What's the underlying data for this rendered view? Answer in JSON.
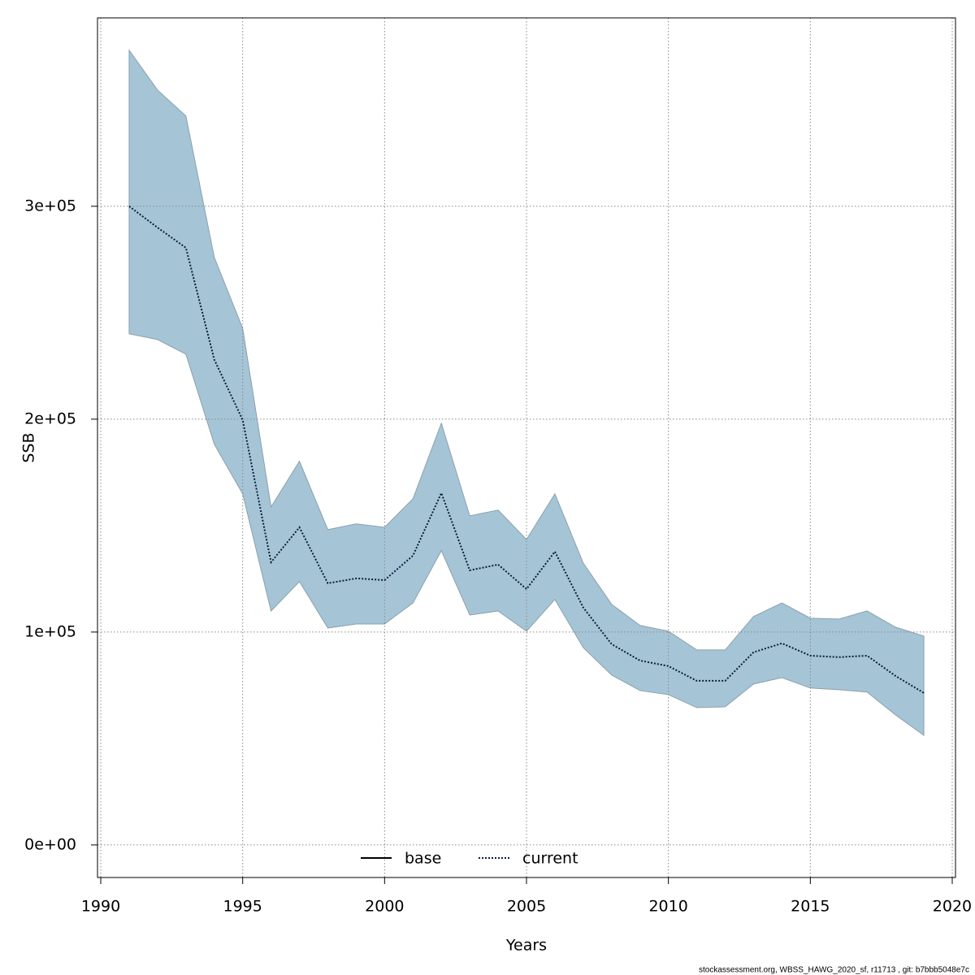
{
  "chart_data": {
    "type": "line",
    "xlabel": "Years",
    "ylabel": "SSB",
    "footnote": "stockassessment.org, WBSS_HAWG_2020_sf, r11713 , git: b7bbb5048e7c",
    "x": [
      1991,
      1992,
      1993,
      1994,
      1995,
      1996,
      1997,
      1998,
      1999,
      2000,
      2001,
      2002,
      2003,
      2004,
      2005,
      2006,
      2007,
      2008,
      2009,
      2010,
      2011,
      2012,
      2013,
      2014,
      2015,
      2016,
      2017,
      2018,
      2019
    ],
    "series": [
      {
        "name": "base",
        "color": "#000000",
        "dashed": false,
        "values": [
          null,
          null,
          null,
          null,
          null,
          null,
          null,
          null,
          null,
          null,
          null,
          null,
          null,
          null,
          null,
          null,
          null,
          null,
          null,
          null,
          null,
          null,
          null,
          null,
          null,
          null,
          null,
          null,
          null
        ]
      },
      {
        "name": "current",
        "color": "#0a1e3c",
        "dashed": true,
        "values": [
          300000,
          290000,
          280500,
          228000,
          199600,
          132800,
          149200,
          122900,
          125200,
          124400,
          135900,
          165300,
          129000,
          131700,
          120200,
          137800,
          111500,
          94300,
          86600,
          84000,
          77100,
          77100,
          90500,
          94700,
          88900,
          88200,
          88900,
          79400,
          71400
        ]
      }
    ],
    "band": {
      "color": "#a5c5d6",
      "edge": "#8aa0ad",
      "upper": [
        373300,
        354600,
        342400,
        276000,
        242700,
        158800,
        180200,
        148100,
        150800,
        149200,
        162600,
        198100,
        154600,
        157300,
        143500,
        164900,
        132400,
        113000,
        103100,
        100400,
        91600,
        91600,
        107300,
        113700,
        106500,
        106100,
        109900,
        102300,
        98100
      ],
      "lower": [
        240100,
        237400,
        230500,
        188200,
        164900,
        109900,
        123700,
        101900,
        103800,
        103800,
        113700,
        138200,
        108000,
        109900,
        100400,
        115300,
        92700,
        79800,
        72500,
        70600,
        64500,
        64900,
        75600,
        78600,
        73700,
        72900,
        71800,
        61100,
        51500
      ]
    },
    "xlim": [
      1989.885,
      2020.115
    ],
    "ylim": [
      -15300,
      388500
    ],
    "xticks": [
      1990,
      1995,
      2000,
      2005,
      2010,
      2015,
      2020
    ],
    "yticks": [
      {
        "value": 0,
        "label": "0e+00"
      },
      {
        "value": 100000,
        "label": "1e+05"
      },
      {
        "value": 200000,
        "label": "2e+05"
      },
      {
        "value": 300000,
        "label": "3e+05"
      }
    ],
    "grid": true,
    "legend": "bottom"
  }
}
